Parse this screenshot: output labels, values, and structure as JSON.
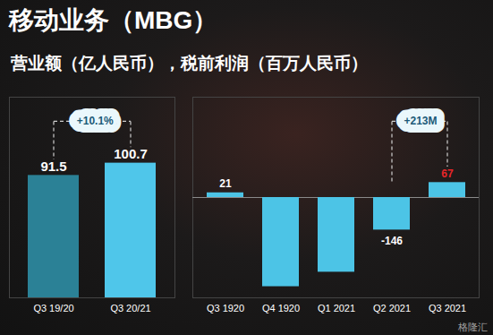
{
  "title": "移动业务（MBG）",
  "subtitle": "营业额（亿人民币），税前利润（百万人民币）",
  "watermark": "格隆汇",
  "chart_data": [
    {
      "type": "bar",
      "categories": [
        "Q3 19/20",
        "Q3 20/21"
      ],
      "values": [
        91.5,
        100.7
      ],
      "colors": [
        "#2b8196",
        "#4fc6ea"
      ],
      "ylim": [
        0,
        150
      ],
      "yticks": [],
      "tick_labels": "x",
      "data_labels": true,
      "annotations": [
        "+10.1%"
      ]
    },
    {
      "type": "bar",
      "categories": [
        "Q3 1920",
        "Q4 1920",
        "Q1 2021",
        "Q2 2021",
        "Q3 2021"
      ],
      "values": [
        21,
        -400,
        -335,
        -146,
        67
      ],
      "value_labels": [
        "21",
        null,
        null,
        "-146",
        "67"
      ],
      "colors": [
        "#4cc4e6",
        "#4cc4e6",
        "#4cc4e6",
        "#4cc4e6",
        "#4cc4e6"
      ],
      "ylim": [
        -450,
        450
      ],
      "yticks": [],
      "tick_labels": "x",
      "data_labels": true,
      "annotations": [
        "+213M"
      ]
    }
  ]
}
